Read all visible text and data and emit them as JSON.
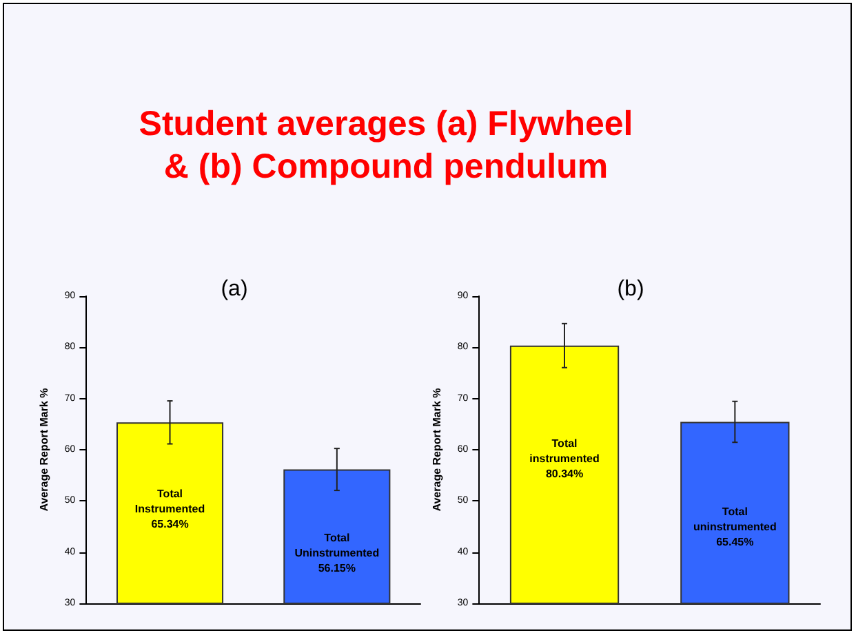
{
  "chart_data": [
    {
      "type": "other",
      "title": "Student averages (a) Flywheel\n& (b) Compound pendulum"
    },
    {
      "type": "bar",
      "title": "(a)",
      "ylabel": "Average Report Mark %",
      "categories": [
        null,
        null
      ],
      "values": [
        65.34,
        56.15
      ],
      "colors": [
        "#ffff00",
        "#3366ff"
      ],
      "errors": [
        4.2,
        4.1
      ],
      "value_labels": [
        "Total\nInstrumented\n65.34%",
        "Total\nUninstrumented\n56.15%"
      ],
      "ylim": [
        30,
        90
      ],
      "yticks": [
        30,
        40,
        50,
        60,
        70,
        80,
        90
      ],
      "grid": false
    },
    {
      "type": "bar",
      "title": "(b)",
      "ylabel": "Average Report Mark %",
      "categories": [
        null,
        null
      ],
      "values": [
        80.34,
        65.45
      ],
      "colors": [
        "#ffff00",
        "#3366ff"
      ],
      "errors": [
        4.3,
        4.0
      ],
      "value_labels": [
        "Total\ninstrumented\n80.34%",
        "Total\nuninstrumented\n65.45%"
      ],
      "ylim": [
        30,
        90
      ],
      "yticks": [
        30,
        40,
        50,
        60,
        70,
        80,
        90
      ],
      "grid": false
    }
  ]
}
